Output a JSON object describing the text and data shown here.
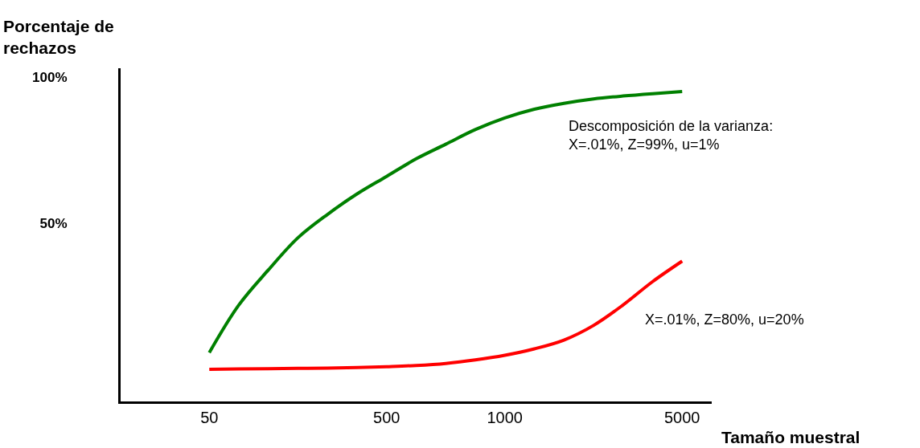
{
  "chart_data": {
    "type": "line",
    "ylabel": "Porcentaje de rechazos",
    "xlabel": "Tamaño muestral",
    "categories": [
      null,
      null,
      null,
      "50",
      null,
      null,
      null,
      null,
      null,
      "500",
      null,
      null,
      null,
      "1000",
      null,
      null,
      null,
      null,
      null,
      "5000"
    ],
    "ylim": [
      -11,
      103
    ],
    "yticks": [
      {
        "value": 50,
        "label": "50%"
      },
      {
        "value": 100,
        "label": "100%"
      }
    ],
    "line_style": "solid",
    "series": [
      {
        "name": "Descomposición de la varianza:\nX=.01%, Z=99%, u=1%",
        "color": "#008000",
        "values": [
          null,
          null,
          null,
          5.7,
          22,
          34,
          45,
          53,
          60,
          66,
          72,
          77,
          82,
          86,
          89,
          91,
          92.5,
          93.5,
          94.3,
          95
        ]
      },
      {
        "name": "X=.01%, Z=80%, u=20%",
        "color": "#ff0000",
        "values": [
          null,
          null,
          null,
          0,
          0.1,
          0.2,
          0.3,
          0.4,
          0.6,
          0.9,
          1.3,
          2,
          3.2,
          4.8,
          7,
          10,
          15,
          22,
          30,
          37
        ]
      }
    ]
  }
}
